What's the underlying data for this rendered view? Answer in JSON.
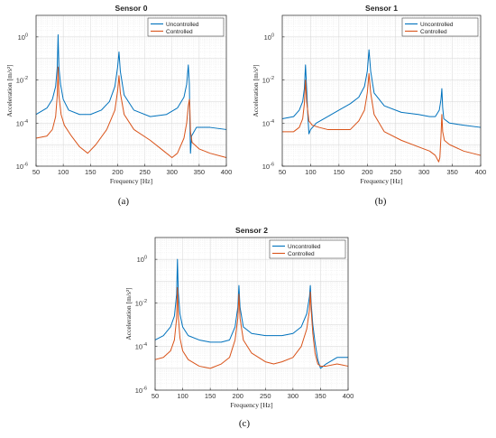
{
  "chart_data": [
    {
      "type": "line",
      "title": "Sensor 0",
      "caption": "(a)",
      "xlabel": "Frequency [Hz]",
      "ylabel": "Acceleration [m/s²]",
      "xlim": [
        50,
        400
      ],
      "ylim_exp": [
        -6,
        1
      ],
      "yscale": "log",
      "grid": true,
      "legend": "top-right",
      "xticks": [
        "50",
        "100",
        "150",
        "200",
        "250",
        "300",
        "350",
        "400"
      ],
      "yticks": [
        {
          "base": "10",
          "exp": "0",
          "v": 0
        },
        {
          "base": "10",
          "exp": "-2",
          "v": -2
        },
        {
          "base": "10",
          "exp": "-4",
          "v": -4
        },
        {
          "base": "10",
          "exp": "-6",
          "v": -6
        }
      ],
      "series": [
        {
          "name": "Uncontrolled",
          "color": "#0072BD",
          "x": [
            50,
            70,
            80,
            86,
            89,
            90.5,
            92,
            95,
            100,
            110,
            130,
            150,
            170,
            185,
            195,
            200,
            202.5,
            205,
            212,
            230,
            260,
            290,
            310,
            322,
            327,
            330,
            332,
            333,
            334,
            336,
            345,
            370,
            400
          ],
          "log_y": [
            -3.6,
            -3.3,
            -2.9,
            -2.3,
            -1.4,
            0.1,
            -1.4,
            -2.2,
            -2.9,
            -3.4,
            -3.6,
            -3.6,
            -3.4,
            -3.0,
            -2.3,
            -1.4,
            -0.7,
            -1.6,
            -2.7,
            -3.4,
            -3.7,
            -3.6,
            -3.3,
            -2.8,
            -2.2,
            -1.3,
            -2.2,
            -4.1,
            -5.4,
            -4.6,
            -4.2,
            -4.2,
            -4.3
          ]
        },
        {
          "name": "Controlled",
          "color": "#D95319",
          "x": [
            50,
            70,
            80,
            86,
            89,
            90.5,
            92,
            96,
            102,
            115,
            130,
            145,
            160,
            180,
            195,
            200,
            202.5,
            205,
            212,
            230,
            260,
            285,
            300,
            310,
            322,
            327,
            330,
            332,
            333,
            334,
            337,
            350,
            370,
            400
          ],
          "log_y": [
            -4.7,
            -4.6,
            -4.3,
            -3.7,
            -2.7,
            -1.4,
            -2.7,
            -3.6,
            -4.1,
            -4.6,
            -5.1,
            -5.4,
            -5.0,
            -4.3,
            -3.4,
            -2.5,
            -1.8,
            -2.6,
            -3.6,
            -4.3,
            -4.8,
            -5.3,
            -5.6,
            -5.4,
            -4.7,
            -4.0,
            -3.2,
            -2.9,
            -3.4,
            -4.4,
            -4.9,
            -5.2,
            -5.4,
            -5.6
          ]
        }
      ]
    },
    {
      "type": "line",
      "title": "Sensor 1",
      "caption": "(b)",
      "xlabel": "Frequency [Hz]",
      "ylabel": "Acceleration [m/s²]",
      "xlim": [
        50,
        400
      ],
      "ylim_exp": [
        -6,
        1
      ],
      "yscale": "log",
      "grid": true,
      "legend": "top-right",
      "xticks": [
        "50",
        "100",
        "150",
        "200",
        "250",
        "300",
        "350",
        "400"
      ],
      "yticks": [
        {
          "base": "10",
          "exp": "0",
          "v": 0
        },
        {
          "base": "10",
          "exp": "-2",
          "v": -2
        },
        {
          "base": "10",
          "exp": "-4",
          "v": -4
        },
        {
          "base": "10",
          "exp": "-6",
          "v": -6
        }
      ],
      "series": [
        {
          "name": "Uncontrolled",
          "color": "#0072BD",
          "x": [
            50,
            70,
            80,
            86,
            89,
            91,
            93,
            95,
            97,
            100,
            110,
            130,
            150,
            170,
            185,
            195,
            200,
            203,
            206,
            212,
            230,
            260,
            290,
            310,
            320,
            327,
            330,
            331.5,
            333,
            335,
            345,
            370,
            400
          ],
          "log_y": [
            -3.8,
            -3.7,
            -3.4,
            -3.0,
            -2.4,
            -1.3,
            -2.4,
            -3.6,
            -4.5,
            -4.3,
            -4.0,
            -3.7,
            -3.4,
            -3.1,
            -2.8,
            -2.3,
            -1.6,
            -0.6,
            -1.6,
            -2.6,
            -3.2,
            -3.5,
            -3.6,
            -3.7,
            -3.7,
            -3.4,
            -2.9,
            -2.4,
            -3.3,
            -3.8,
            -4.0,
            -4.1,
            -4.2
          ]
        },
        {
          "name": "Controlled",
          "color": "#D95319",
          "x": [
            50,
            70,
            80,
            86,
            89,
            91,
            93,
            97,
            103,
            115,
            130,
            150,
            170,
            185,
            195,
            200,
            203,
            206,
            212,
            230,
            260,
            290,
            310,
            320,
            326,
            328,
            330,
            331.5,
            333,
            336,
            345,
            370,
            400
          ],
          "log_y": [
            -4.4,
            -4.4,
            -4.2,
            -3.8,
            -3.1,
            -2.0,
            -3.0,
            -3.9,
            -4.1,
            -4.2,
            -4.3,
            -4.3,
            -4.3,
            -3.9,
            -3.4,
            -2.6,
            -1.7,
            -2.6,
            -3.6,
            -4.4,
            -4.8,
            -5.1,
            -5.3,
            -5.5,
            -5.8,
            -5.6,
            -4.6,
            -3.6,
            -4.4,
            -4.8,
            -5.0,
            -5.3,
            -5.5
          ]
        }
      ]
    },
    {
      "type": "line",
      "title": "Sensor 2",
      "caption": "(c)",
      "xlabel": "Frequency [Hz]",
      "ylabel": "Acceleration [m/s²]",
      "xlim": [
        50,
        400
      ],
      "ylim_exp": [
        -6,
        1
      ],
      "yscale": "log",
      "grid": true,
      "legend": "top-right",
      "xticks": [
        "50",
        "100",
        "150",
        "200",
        "250",
        "300",
        "350",
        "400"
      ],
      "yticks": [
        {
          "base": "10",
          "exp": "0",
          "v": 0
        },
        {
          "base": "10",
          "exp": "-2",
          "v": -2
        },
        {
          "base": "10",
          "exp": "-4",
          "v": -4
        },
        {
          "base": "10",
          "exp": "-6",
          "v": -6
        }
      ],
      "series": [
        {
          "name": "Uncontrolled",
          "color": "#0072BD",
          "x": [
            50,
            65,
            78,
            85,
            89,
            90.5,
            92,
            95,
            100,
            110,
            130,
            150,
            170,
            185,
            195,
            200,
            202,
            204,
            210,
            225,
            250,
            280,
            300,
            315,
            325,
            330,
            331.5,
            333,
            336,
            340,
            345,
            350,
            360,
            380,
            400
          ],
          "log_y": [
            -3.7,
            -3.5,
            -3.1,
            -2.6,
            -1.6,
            0.0,
            -1.5,
            -2.5,
            -3.1,
            -3.5,
            -3.7,
            -3.8,
            -3.8,
            -3.7,
            -3.1,
            -2.2,
            -1.2,
            -2.2,
            -3.1,
            -3.4,
            -3.5,
            -3.5,
            -3.4,
            -3.1,
            -2.5,
            -1.7,
            -1.2,
            -2.0,
            -3.0,
            -3.8,
            -4.6,
            -5.0,
            -4.8,
            -4.5,
            -4.5
          ]
        },
        {
          "name": "Controlled",
          "color": "#D95319",
          "x": [
            50,
            65,
            78,
            85,
            89,
            90.5,
            92,
            95,
            100,
            110,
            130,
            150,
            170,
            185,
            195,
            200,
            202,
            204,
            210,
            225,
            250,
            265,
            280,
            300,
            315,
            325,
            330,
            331.5,
            333,
            336,
            340,
            345,
            350,
            360,
            380,
            400
          ],
          "log_y": [
            -4.6,
            -4.5,
            -4.2,
            -3.7,
            -2.7,
            -1.3,
            -2.6,
            -3.6,
            -4.2,
            -4.6,
            -4.9,
            -5.0,
            -4.8,
            -4.5,
            -3.7,
            -2.7,
            -1.6,
            -2.7,
            -3.7,
            -4.3,
            -4.7,
            -4.8,
            -4.7,
            -4.5,
            -4.0,
            -3.2,
            -2.3,
            -1.5,
            -2.3,
            -3.4,
            -4.3,
            -4.8,
            -4.9,
            -4.9,
            -4.8,
            -4.9
          ]
        }
      ]
    }
  ]
}
